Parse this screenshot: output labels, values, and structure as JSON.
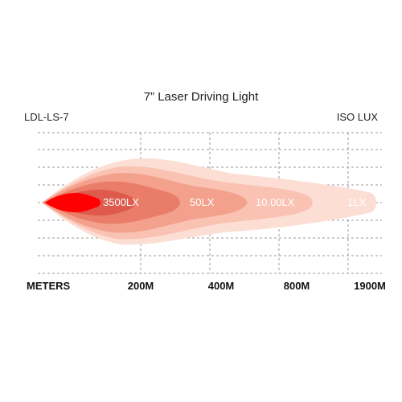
{
  "header": {
    "title": "7” Laser Driving Light",
    "model": "LDL-LS-7",
    "unit": "ISO LUX"
  },
  "diagram": {
    "colors": {
      "zone_1lx": "#fcded4",
      "zone_10lx": "#f9c2b2",
      "zone_50lx": "#f3a18c",
      "zone_inner": "#ea7d69",
      "zone_3500lx": "#de5a4c",
      "hotspot": "#ff0000",
      "grid": "#999999"
    },
    "zone_labels": [
      {
        "key": "lx3500",
        "text": "3500LX"
      },
      {
        "key": "lx50",
        "text": "50LX"
      },
      {
        "key": "lx10",
        "text": "10.00LX"
      },
      {
        "key": "lx1",
        "text": "1LX"
      }
    ],
    "axis": {
      "meters_label": "METERS",
      "ticks": [
        "200M",
        "400M",
        "800M",
        "1900M"
      ]
    }
  }
}
